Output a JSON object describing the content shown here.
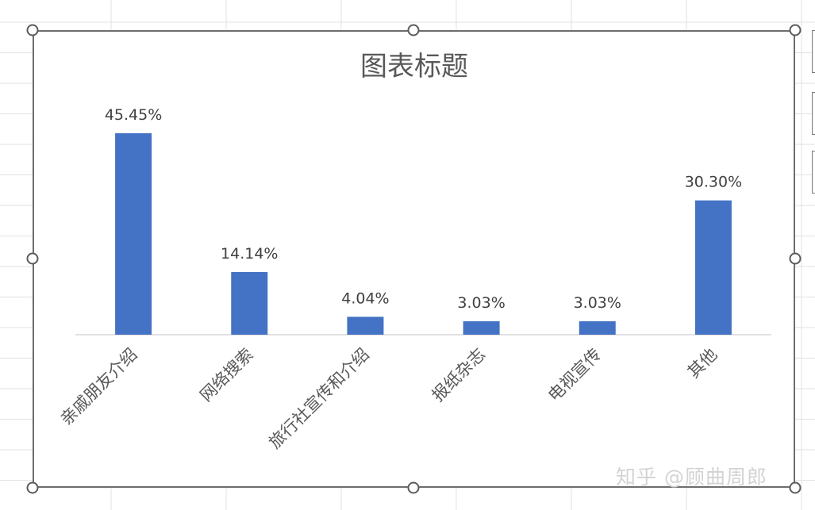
{
  "chart_data": {
    "type": "bar",
    "title": "图表标题",
    "categories": [
      "亲戚朋友介绍",
      "网络搜索",
      "旅行社宣传和介绍",
      "报纸杂志",
      "电视宣传",
      "其他"
    ],
    "values": [
      45.45,
      14.14,
      4.04,
      3.03,
      3.03,
      30.3
    ],
    "data_labels": [
      "45.45%",
      "14.14%",
      "4.04%",
      "3.03%",
      "3.03%",
      "30.30%"
    ],
    "xlabel": "",
    "ylabel": "",
    "ylim": [
      0,
      45.45
    ],
    "grid": false,
    "legend": "none",
    "bar_color": "#4472c4",
    "axis_color": "#d9d9d9"
  },
  "watermark": "知乎 @顾曲周郎"
}
